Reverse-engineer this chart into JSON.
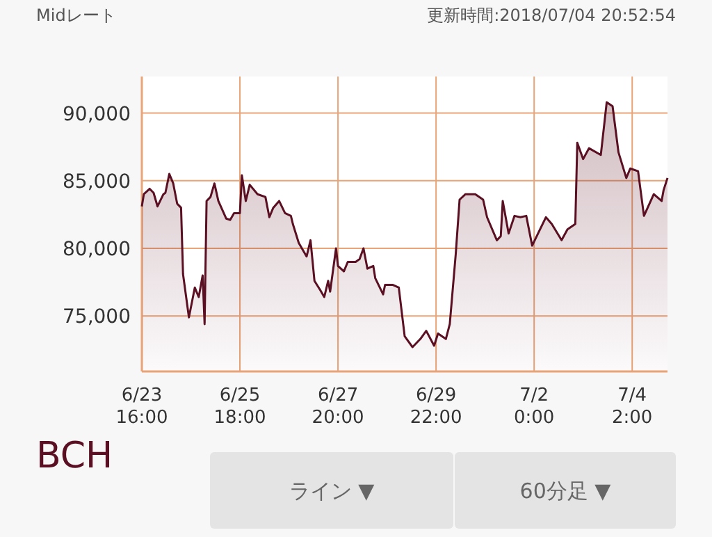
{
  "chart_data": {
    "type": "area",
    "title": "BCH",
    "subtitle": "Midレート",
    "annotations": [
      "更新時間:2018/07/04 20:52:54",
      "ライン ▼",
      "60分足 ▼"
    ],
    "x": [
      "2018-06-23T16:00",
      "2018-06-23T17:00",
      "2018-06-23T20:00",
      "2018-06-23T22:00",
      "2018-06-24T00:00",
      "2018-06-24T03:00",
      "2018-06-24T04:00",
      "2018-06-24T06:00",
      "2018-06-24T08:00",
      "2018-06-24T10:00",
      "2018-06-24T12:00",
      "2018-06-24T13:00",
      "2018-06-24T16:00",
      "2018-06-24T19:00",
      "2018-06-24T21:00",
      "2018-06-24T23:00",
      "2018-06-25T00:00",
      "2018-06-25T01:00",
      "2018-06-25T03:00",
      "2018-06-25T05:00",
      "2018-06-25T07:00",
      "2018-06-25T11:00",
      "2018-06-25T13:00",
      "2018-06-25T15:00",
      "2018-06-25T18:00",
      "2018-06-25T19:00",
      "2018-06-25T21:00",
      "2018-06-25T23:00",
      "2018-06-26T03:00",
      "2018-06-26T07:00",
      "2018-06-26T09:00",
      "2018-06-26T11:00",
      "2018-06-26T14:00",
      "2018-06-26T17:00",
      "2018-06-26T20:00",
      "2018-06-26T21:00",
      "2018-06-27T00:00",
      "2018-06-27T04:00",
      "2018-06-27T06:00",
      "2018-06-27T08:00",
      "2018-06-27T11:00",
      "2018-06-27T13:00",
      "2018-06-27T15:00",
      "2018-06-27T16:00",
      "2018-06-27T19:00",
      "2018-06-27T20:00",
      "2018-06-27T23:00",
      "2018-06-28T01:00",
      "2018-06-28T05:00",
      "2018-06-28T07:00",
      "2018-06-28T09:00",
      "2018-06-28T11:00",
      "2018-06-28T14:00",
      "2018-06-28T15:00",
      "2018-06-28T19:00",
      "2018-06-28T20:00",
      "2018-06-29T00:00",
      "2018-06-29T03:00",
      "2018-06-29T06:00",
      "2018-06-29T10:00",
      "2018-06-29T14:00",
      "2018-06-29T17:00",
      "2018-06-29T21:00",
      "2018-06-29T23:00",
      "2018-06-30T03:00",
      "2018-06-30T05:00",
      "2018-06-30T08:00",
      "2018-06-30T10:00",
      "2018-06-30T13:00",
      "2018-06-30T18:00",
      "2018-06-30T22:00",
      "2018-07-01T00:00",
      "2018-07-01T05:00",
      "2018-07-01T07:00",
      "2018-07-01T08:00",
      "2018-07-01T11:00",
      "2018-07-01T14:00",
      "2018-07-01T17:00",
      "2018-07-01T20:00",
      "2018-07-01T23:00",
      "2018-07-02T02:00",
      "2018-07-02T06:00",
      "2018-07-02T09:00",
      "2018-07-02T14:00",
      "2018-07-02T17:00",
      "2018-07-02T21:00",
      "2018-07-02T22:00",
      "2018-07-03T01:00",
      "2018-07-03T04:00",
      "2018-07-03T10:00",
      "2018-07-03T13:00",
      "2018-07-03T16:00",
      "2018-07-03T19:00",
      "2018-07-03T23:00",
      "2018-07-04T01:00",
      "2018-07-04T05:00",
      "2018-07-04T08:00",
      "2018-07-04T13:00",
      "2018-07-04T17:00",
      "2018-07-04T18:00",
      "2018-07-04T20:00"
    ],
    "series": [
      {
        "color": "#5a0f22",
        "values": [
          83100,
          84000,
          84400,
          84100,
          83100,
          84000,
          84100,
          85500,
          84800,
          83300,
          83000,
          78100,
          74900,
          77100,
          76400,
          78000,
          74400,
          83500,
          83800,
          84800,
          83500,
          82200,
          82100,
          82600,
          82600,
          85400,
          83500,
          84700,
          84000,
          83800,
          82300,
          83000,
          83500,
          82600,
          82400,
          81800,
          80400,
          79400,
          80600,
          77600,
          76900,
          76400,
          77600,
          76800,
          80000,
          78700,
          78300,
          79000,
          79000,
          79200,
          80000,
          78500,
          78700,
          77800,
          76600,
          77300,
          77300,
          77100,
          73500,
          72700,
          73300,
          73900,
          72800,
          73700,
          73300,
          74400,
          79500,
          83600,
          84000,
          84000,
          83600,
          82300,
          80600,
          80900,
          83500,
          81100,
          82400,
          82300,
          82400,
          80200,
          81100,
          82300,
          81800,
          80600,
          81400,
          81800,
          87800,
          86600,
          87400,
          86900,
          90800,
          90500,
          87100,
          85200,
          85900,
          85700,
          82400,
          84000,
          83500,
          84300,
          85200
        ]
      }
    ],
    "xlim": [
      "2018-06-23T16:00",
      "2018-07-04T20:00"
    ],
    "xticks": [
      {
        "value": "2018-06-23T16:00",
        "label": "6/23 16:00"
      },
      {
        "value": "2018-06-25T18:00",
        "label": "6/25 18:00"
      },
      {
        "value": "2018-06-27T20:00",
        "label": "6/27 20:00"
      },
      {
        "value": "2018-06-29T22:00",
        "label": "6/29 22:00"
      },
      {
        "value": "2018-07-02T00:00",
        "label": "7/2 0:00"
      },
      {
        "value": "2018-07-04T02:00",
        "label": "7/4 2:00"
      }
    ],
    "ylim": [
      70900,
      92700
    ],
    "yticks": [
      {
        "value": 75000,
        "label": "75,000"
      },
      {
        "value": 80000,
        "label": "80,000"
      },
      {
        "value": 85000,
        "label": "85,000"
      },
      {
        "value": 90000,
        "label": "90,000"
      }
    ],
    "grid": true
  }
}
